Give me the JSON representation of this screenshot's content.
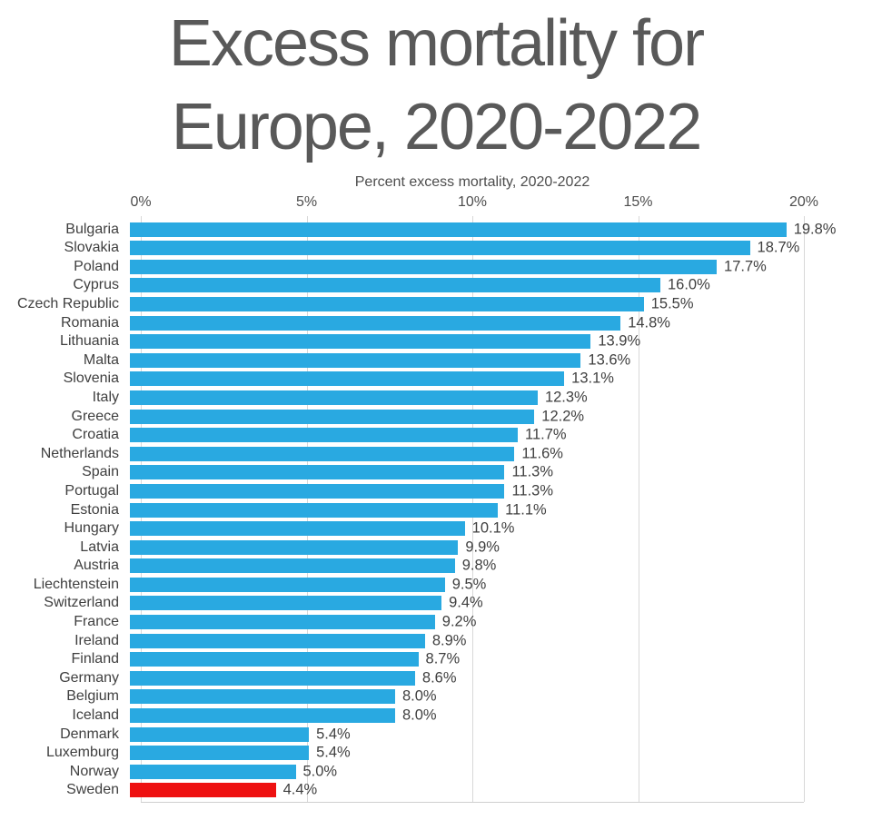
{
  "title": "Excess mortality for Europe, 2020-2022",
  "title_lines": [
    "Excess mortality for",
    "Europe, 2020-2022"
  ],
  "chart_data": {
    "type": "bar",
    "orientation": "horizontal",
    "title": "Excess mortality for Europe, 2020-2022",
    "axis_title": "Percent excess mortality, 2020-2022",
    "xlabel": "Percent excess mortality, 2020-2022",
    "ylabel": "",
    "xlim": [
      0,
      20
    ],
    "grid": true,
    "legend": "none",
    "ticks": [
      {
        "value": 0,
        "label": "0%"
      },
      {
        "value": 5,
        "label": "5%"
      },
      {
        "value": 10,
        "label": "10%"
      },
      {
        "value": 15,
        "label": "15%"
      },
      {
        "value": 20,
        "label": "20%"
      }
    ],
    "colors": {
      "bar": "#29a9e1",
      "highlight_bar": "#ee1111",
      "title_text": "#595959",
      "axis_text": "#4d4d4d",
      "label_text": "#3f3f3f",
      "gridline": "#d8d8d8"
    },
    "rows": [
      {
        "country": "Bulgaria",
        "value": 19.8,
        "label": "19.8%",
        "highlight": false
      },
      {
        "country": "Slovakia",
        "value": 18.7,
        "label": "18.7%",
        "highlight": false
      },
      {
        "country": "Poland",
        "value": 17.7,
        "label": "17.7%",
        "highlight": false
      },
      {
        "country": "Cyprus",
        "value": 16.0,
        "label": "16.0%",
        "highlight": false
      },
      {
        "country": "Czech Republic",
        "value": 15.5,
        "label": "15.5%",
        "highlight": false
      },
      {
        "country": "Romania",
        "value": 14.8,
        "label": "14.8%",
        "highlight": false
      },
      {
        "country": "Lithuania",
        "value": 13.9,
        "label": "13.9%",
        "highlight": false
      },
      {
        "country": "Malta",
        "value": 13.6,
        "label": "13.6%",
        "highlight": false
      },
      {
        "country": "Slovenia",
        "value": 13.1,
        "label": "13.1%",
        "highlight": false
      },
      {
        "country": "Italy",
        "value": 12.3,
        "label": "12.3%",
        "highlight": false
      },
      {
        "country": "Greece",
        "value": 12.2,
        "label": "12.2%",
        "highlight": false
      },
      {
        "country": "Croatia",
        "value": 11.7,
        "label": "11.7%",
        "highlight": false
      },
      {
        "country": "Netherlands",
        "value": 11.6,
        "label": "11.6%",
        "highlight": false
      },
      {
        "country": "Spain",
        "value": 11.3,
        "label": "11.3%",
        "highlight": false
      },
      {
        "country": "Portugal",
        "value": 11.3,
        "label": "11.3%",
        "highlight": false
      },
      {
        "country": "Estonia",
        "value": 11.1,
        "label": "11.1%",
        "highlight": false
      },
      {
        "country": "Hungary",
        "value": 10.1,
        "label": "10.1%",
        "highlight": false
      },
      {
        "country": "Latvia",
        "value": 9.9,
        "label": "9.9%",
        "highlight": false
      },
      {
        "country": "Austria",
        "value": 9.8,
        "label": "9.8%",
        "highlight": false
      },
      {
        "country": "Liechtenstein",
        "value": 9.5,
        "label": "9.5%",
        "highlight": false
      },
      {
        "country": "Switzerland",
        "value": 9.4,
        "label": "9.4%",
        "highlight": false
      },
      {
        "country": "France",
        "value": 9.2,
        "label": "9.2%",
        "highlight": false
      },
      {
        "country": "Ireland",
        "value": 8.9,
        "label": "8.9%",
        "highlight": false
      },
      {
        "country": "Finland",
        "value": 8.7,
        "label": "8.7%",
        "highlight": false
      },
      {
        "country": "Germany",
        "value": 8.6,
        "label": "8.6%",
        "highlight": false
      },
      {
        "country": "Belgium",
        "value": 8.0,
        "label": "8.0%",
        "highlight": false
      },
      {
        "country": "Iceland",
        "value": 8.0,
        "label": "8.0%",
        "highlight": false
      },
      {
        "country": "Denmark",
        "value": 5.4,
        "label": "5.4%",
        "highlight": false
      },
      {
        "country": "Luxemburg",
        "value": 5.4,
        "label": "5.4%",
        "highlight": false
      },
      {
        "country": "Norway",
        "value": 5.0,
        "label": "5.0%",
        "highlight": false
      },
      {
        "country": "Sweden",
        "value": 4.4,
        "label": "4.4%",
        "highlight": true
      }
    ]
  }
}
